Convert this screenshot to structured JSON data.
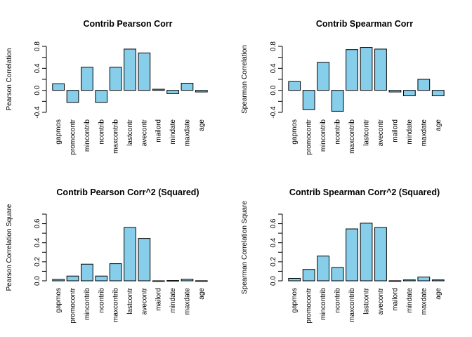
{
  "bar_color": "#87CEEB",
  "chart_data": [
    {
      "type": "bar",
      "title": "Contrib Pearson Corr",
      "ylabel": "Pearson Correlation",
      "categories": [
        "gapmos",
        "promocontr",
        "mincontrib",
        "ncontrib",
        "maxcontrib",
        "lastcontr",
        "avecontr",
        "mailord",
        "mindate",
        "maxdate",
        "age"
      ],
      "values": [
        0.12,
        -0.22,
        0.42,
        -0.22,
        0.42,
        0.75,
        0.68,
        0.02,
        -0.06,
        0.13,
        -0.03
      ],
      "ylim": [
        -0.4,
        0.8
      ],
      "yticks": [
        -0.4,
        0.0,
        0.4,
        0.8
      ],
      "yticklabels": [
        "-0.4",
        "0.0",
        "0.4",
        "0.8"
      ],
      "ytick_step": 0.2
    },
    {
      "type": "bar",
      "title": "Contrib Spearman Corr",
      "ylabel": "Spearman Correlation",
      "categories": [
        "gapmos",
        "promocontr",
        "mincontrib",
        "ncontrib",
        "maxcontrib",
        "lastcontr",
        "avecontr",
        "mailord",
        "mindate",
        "maxdate",
        "age"
      ],
      "values": [
        0.16,
        -0.35,
        0.51,
        -0.38,
        0.74,
        0.78,
        0.75,
        -0.03,
        -0.1,
        0.2,
        -0.1
      ],
      "ylim": [
        -0.4,
        0.8
      ],
      "yticks": [
        -0.4,
        0.0,
        0.4,
        0.8
      ],
      "yticklabels": [
        "-0.4",
        "0.0",
        "0.4",
        "0.8"
      ],
      "ytick_step": 0.2
    },
    {
      "type": "bar",
      "title": "Contrib Pearson Corr^2 (Squared)",
      "ylabel": "Pearson Correlation Square",
      "categories": [
        "gapmos",
        "promocontr",
        "mincontrib",
        "ncontrib",
        "maxcontrib",
        "lastcontr",
        "avecontr",
        "mailord",
        "mindate",
        "maxdate",
        "age"
      ],
      "values": [
        0.015,
        0.05,
        0.175,
        0.05,
        0.18,
        0.56,
        0.445,
        0.0004,
        0.003,
        0.017,
        0.001
      ],
      "ylim": [
        0.0,
        0.7
      ],
      "yticks": [
        0.0,
        0.2,
        0.4,
        0.6
      ],
      "yticklabels": [
        "0.0",
        "0.2",
        "0.4",
        "0.6"
      ],
      "ytick_step": 0.1
    },
    {
      "type": "bar",
      "title": "Contrib Spearman Corr^2 (Squared)",
      "ylabel": "Spearman Correlation Square",
      "categories": [
        "gapmos",
        "promocontr",
        "mincontrib",
        "ncontrib",
        "maxcontrib",
        "lastcontr",
        "avecontr",
        "mailord",
        "mindate",
        "maxdate",
        "age"
      ],
      "values": [
        0.026,
        0.12,
        0.26,
        0.14,
        0.545,
        0.605,
        0.56,
        0.001,
        0.01,
        0.04,
        0.01
      ],
      "ylim": [
        0.0,
        0.7
      ],
      "yticks": [
        0.0,
        0.2,
        0.4,
        0.6
      ],
      "yticklabels": [
        "0.0",
        "0.2",
        "0.4",
        "0.6"
      ],
      "ytick_step": 0.1
    }
  ]
}
